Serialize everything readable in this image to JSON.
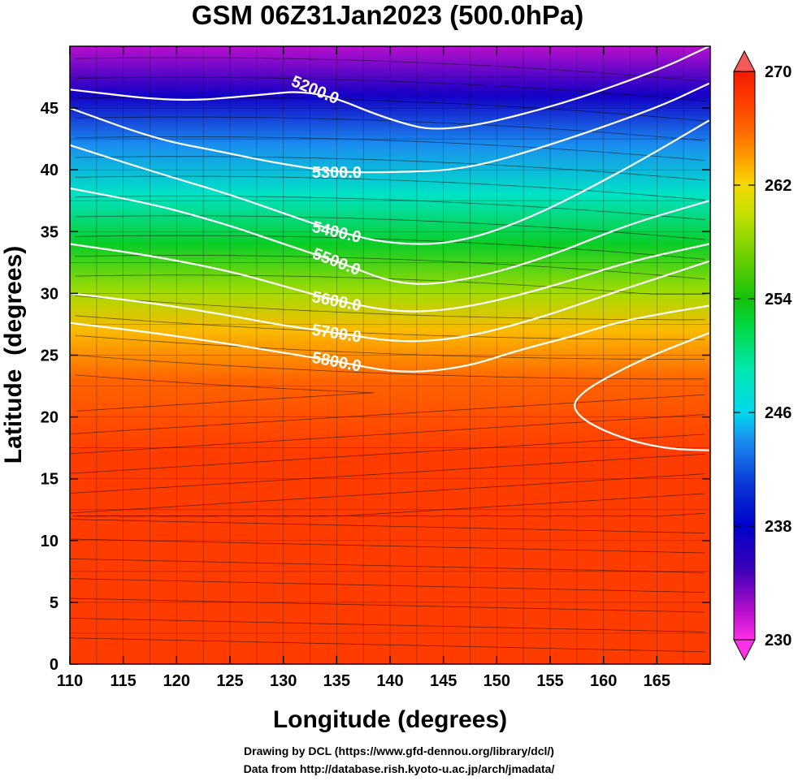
{
  "chart_data": {
    "type": "heatmap",
    "title": "GSM 06Z31Jan2023 (500.0hPa)",
    "xlabel": "Longitude (degrees)",
    "ylabel": "Latitude  (degrees)",
    "xlim": [
      110,
      170
    ],
    "ylim": [
      0,
      50
    ],
    "x_ticks": [
      110,
      115,
      120,
      125,
      130,
      135,
      140,
      145,
      150,
      155,
      160,
      165
    ],
    "y_ticks": [
      0,
      5,
      10,
      15,
      20,
      25,
      30,
      35,
      40,
      45
    ],
    "colorbar": {
      "min": 230,
      "max": 270,
      "ticks": [
        230,
        238,
        246,
        254,
        262,
        270
      ],
      "extend": "both"
    },
    "field_bands": [
      {
        "lat": 50,
        "value": 232
      },
      {
        "lat": 46,
        "value": 237
      },
      {
        "lat": 42,
        "value": 244
      },
      {
        "lat": 38,
        "value": 248
      },
      {
        "lat": 34,
        "value": 253
      },
      {
        "lat": 30,
        "value": 259
      },
      {
        "lat": 27,
        "value": 263
      },
      {
        "lat": 23,
        "value": 266
      },
      {
        "lat": 17,
        "value": 268
      },
      {
        "lat": 0,
        "value": 268
      }
    ],
    "height_contours": [
      {
        "label": "5200.0",
        "points": [
          [
            110,
            46.5
          ],
          [
            120,
            45.5
          ],
          [
            127,
            46
          ],
          [
            133,
            46.5
          ],
          [
            140,
            44
          ],
          [
            145,
            43
          ],
          [
            155,
            45
          ],
          [
            165,
            48
          ],
          [
            169.9,
            50
          ]
        ]
      },
      {
        "label": "5300.0",
        "points": [
          [
            110,
            45
          ],
          [
            118,
            42.5
          ],
          [
            124,
            41.5
          ],
          [
            129,
            40.6
          ],
          [
            135,
            39.8
          ],
          [
            140,
            39.8
          ],
          [
            147,
            40
          ],
          [
            155,
            42
          ],
          [
            165,
            45
          ],
          [
            169.9,
            47
          ]
        ]
      },
      {
        "label": "5400.0",
        "points": [
          [
            110,
            42
          ],
          [
            118,
            39.8
          ],
          [
            125,
            38
          ],
          [
            130,
            36.5
          ],
          [
            135,
            35
          ],
          [
            140,
            34
          ],
          [
            146,
            34
          ],
          [
            153,
            36
          ],
          [
            162,
            40
          ],
          [
            169.9,
            44
          ]
        ]
      },
      {
        "label": "5500.0",
        "points": [
          [
            110,
            38.5
          ],
          [
            118,
            37.2
          ],
          [
            125,
            35.5
          ],
          [
            130,
            34
          ],
          [
            135,
            32.6
          ],
          [
            141,
            30.6
          ],
          [
            147,
            31
          ],
          [
            155,
            33
          ],
          [
            162,
            35.5
          ],
          [
            169.9,
            37.5
          ]
        ]
      },
      {
        "label": "5600.0",
        "points": [
          [
            110,
            34
          ],
          [
            118,
            33
          ],
          [
            125,
            31.8
          ],
          [
            130,
            30.6
          ],
          [
            135,
            29.4
          ],
          [
            141,
            28.4
          ],
          [
            147,
            28.8
          ],
          [
            155,
            30.5
          ],
          [
            162,
            32.5
          ],
          [
            169.9,
            34
          ]
        ]
      },
      {
        "label": "5700.0",
        "points": [
          [
            110,
            30
          ],
          [
            118,
            29.2
          ],
          [
            125,
            28.2
          ],
          [
            130,
            27.4
          ],
          [
            135,
            26.8
          ],
          [
            141,
            26
          ],
          [
            147,
            26.4
          ],
          [
            154,
            28
          ],
          [
            160,
            29.8
          ],
          [
            166,
            31.5
          ],
          [
            169.9,
            32.6
          ]
        ]
      },
      {
        "label": "5800.0",
        "points": [
          [
            110,
            27.6
          ],
          [
            118,
            26.8
          ],
          [
            125,
            25.9
          ],
          [
            130,
            25.2
          ],
          [
            135,
            24.5
          ],
          [
            141,
            23.5
          ],
          [
            147,
            24
          ],
          [
            152,
            25.4
          ],
          [
            157,
            26.5
          ],
          [
            161,
            27.6
          ],
          [
            165,
            28.3
          ],
          [
            169.9,
            29
          ]
        ]
      },
      {
        "label": "",
        "points": [
          [
            169.9,
            17.3
          ],
          [
            166,
            17.4
          ],
          [
            162,
            18.2
          ],
          [
            158.5,
            19.5
          ],
          [
            157,
            20.8
          ],
          [
            158,
            22
          ],
          [
            160.5,
            23.3
          ],
          [
            164,
            24.8
          ],
          [
            169.9,
            26.8
          ]
        ]
      }
    ]
  },
  "footer": {
    "line1": "Drawing by DCL (https://www.gfd-dennou.org/library/dcl/)",
    "line2": "Data from http://database.rish.kyoto-u.ac.jp/arch/jmadata/"
  }
}
